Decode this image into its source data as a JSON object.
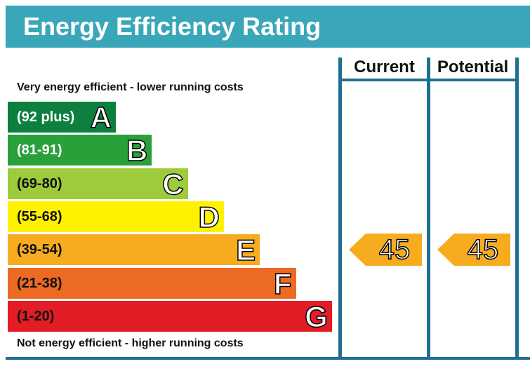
{
  "title": "Energy Efficiency Rating",
  "columns": {
    "current": "Current",
    "potential": "Potential"
  },
  "notes": {
    "top": "Very energy efficient - lower running costs",
    "bottom": "Not energy efficient - higher running costs"
  },
  "colors": {
    "header": "#3aa6b9",
    "frame": "#1f6f93",
    "arrow": "#f5a623"
  },
  "chart_data": {
    "type": "bar",
    "title": "Energy Efficiency Rating",
    "categories": [
      "A",
      "B",
      "C",
      "D",
      "E",
      "F",
      "G"
    ],
    "bands": [
      {
        "letter": "A",
        "range": "(92 plus)",
        "min": 92,
        "max": 100,
        "color": "#0d8040",
        "text_dark": false
      },
      {
        "letter": "B",
        "range": "(81-91)",
        "min": 81,
        "max": 91,
        "color": "#2aa03a",
        "text_dark": false
      },
      {
        "letter": "C",
        "range": "(69-80)",
        "min": 69,
        "max": 80,
        "color": "#9dcb3b",
        "text_dark": true
      },
      {
        "letter": "D",
        "range": "(55-68)",
        "min": 55,
        "max": 68,
        "color": "#fff200",
        "text_dark": true
      },
      {
        "letter": "E",
        "range": "(39-54)",
        "min": 39,
        "max": 54,
        "color": "#f7ac1f",
        "text_dark": true
      },
      {
        "letter": "F",
        "range": "(21-38)",
        "min": 21,
        "max": 38,
        "color": "#ec6a23",
        "text_dark": true
      },
      {
        "letter": "G",
        "range": "(1-20)",
        "min": 1,
        "max": 20,
        "color": "#e21d26",
        "text_dark": true
      }
    ],
    "series": [
      {
        "name": "Current",
        "value": 45,
        "band": "E"
      },
      {
        "name": "Potential",
        "value": 45,
        "band": "E"
      }
    ]
  }
}
